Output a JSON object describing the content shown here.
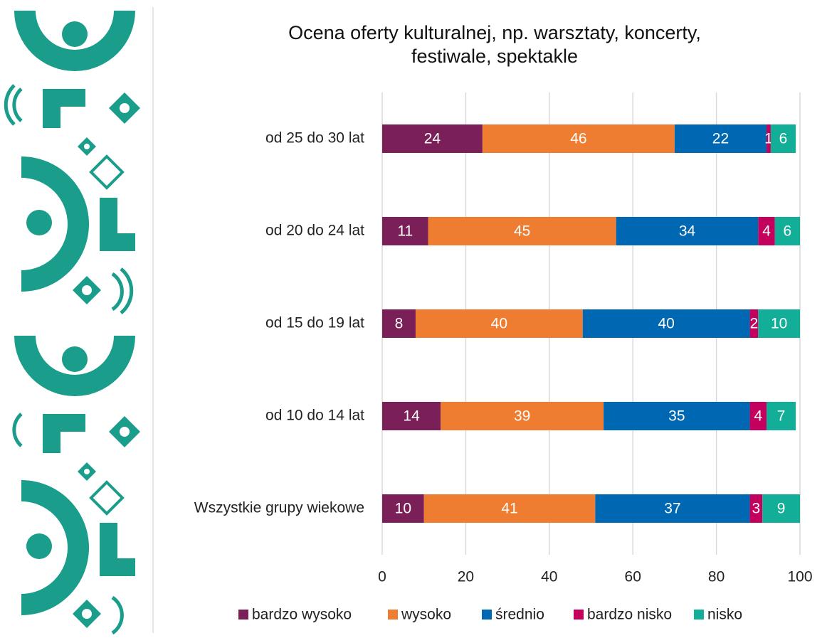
{
  "chart_data": {
    "type": "bar",
    "orientation": "horizontal",
    "stacked": true,
    "title": "Ocena oferty kulturalnej, np. warsztaty, koncerty, festiwale, spektakle",
    "categories": [
      "od 25 do 30 lat",
      "od 20 do 24 lat",
      "od 15 do 19 lat",
      "od 10 do 14 lat",
      "Wszystkie grupy wiekowe"
    ],
    "series": [
      {
        "name": "bardzo wysoko",
        "color": "#7b1f58",
        "values": [
          24,
          11,
          8,
          14,
          10
        ]
      },
      {
        "name": "wysoko",
        "color": "#ee7d31",
        "values": [
          46,
          45,
          40,
          39,
          41
        ]
      },
      {
        "name": "średnio",
        "color": "#0068b3",
        "values": [
          22,
          34,
          40,
          35,
          37
        ]
      },
      {
        "name": "bardzo nisko",
        "color": "#c3005e",
        "values": [
          1,
          4,
          2,
          4,
          3
        ]
      },
      {
        "name": "nisko",
        "color": "#12ae98",
        "values": [
          6,
          6,
          10,
          7,
          9
        ]
      }
    ],
    "xlim": [
      0,
      100
    ],
    "xticks": [
      0,
      20,
      40,
      60,
      80,
      100
    ],
    "grid": true,
    "legend": "bottom"
  }
}
